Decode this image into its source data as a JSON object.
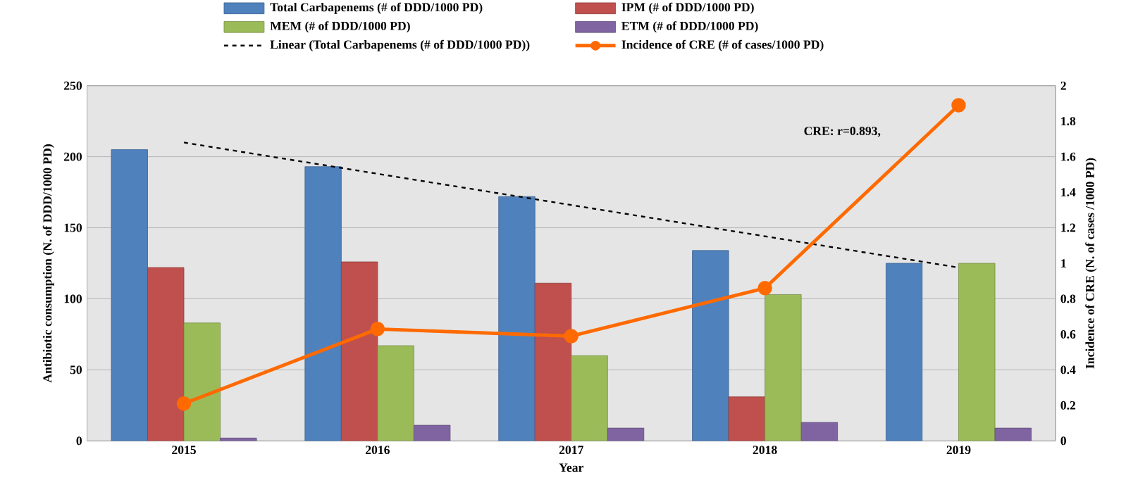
{
  "chart_data": {
    "type": "bar",
    "categories": [
      "2015",
      "2016",
      "2017",
      "2018",
      "2019"
    ],
    "xlabel": "Year",
    "ylabel": "Antibiotic consumption (N. of DDD/1000 PD)",
    "y2label": "Incidence of CRE (N. of cases /1000 PD)",
    "ylim": [
      0,
      250
    ],
    "yticks": [
      0,
      50,
      100,
      150,
      200,
      250
    ],
    "y2lim": [
      0,
      2
    ],
    "y2ticks": [
      0,
      0.2,
      0.4,
      0.6,
      0.8,
      1,
      1.2,
      1.4,
      1.6,
      1.8,
      2
    ],
    "grid": "y",
    "legend": "top",
    "annotations": [
      "CRE: r=0.893,"
    ],
    "series": [
      {
        "name": "Total Carbapenems (# of DDD/1000 PD)",
        "color": "#4f81bd",
        "values": [
          205,
          193,
          172,
          134,
          125
        ]
      },
      {
        "name": "IPM (# of DDD/1000 PD)",
        "color": "#c0504d",
        "values": [
          122,
          126,
          111,
          31,
          null
        ]
      },
      {
        "name": "MEM (# of DDD/1000 PD)",
        "color": "#9bbb59",
        "values": [
          83,
          67,
          60,
          103,
          125
        ]
      },
      {
        "name": "ETM (# of DDD/1000 PD)",
        "color": "#8064a2",
        "values": [
          2,
          11,
          9,
          13,
          9
        ]
      },
      {
        "name": "Linear (Total Carbapenems (# of DDD/1000 PD))",
        "type": "line",
        "color": "#000000",
        "line_style": "dashed",
        "marker": "none",
        "values": [
          210,
          188,
          166,
          144,
          122
        ]
      },
      {
        "name": "Incidence of CRE (# of cases/1000 PD)",
        "type": "line",
        "color": "#ff6a00",
        "line_style": "solid",
        "marker": "circle",
        "axis": "y2",
        "values": [
          0.21,
          0.63,
          0.59,
          0.86,
          1.89
        ]
      }
    ]
  }
}
